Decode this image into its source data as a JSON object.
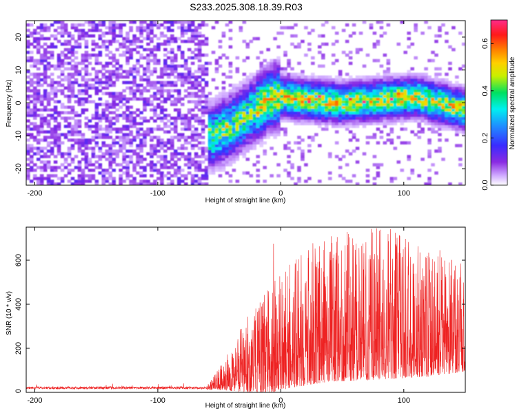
{
  "figure_title": "S233.2025.308.18.39.R03",
  "colorbar": {
    "label": "Normalized spectral amplitude",
    "ticks": [
      "0.0",
      "0.2",
      "0.4",
      "0.6"
    ],
    "tick_values": [
      0.0,
      0.2,
      0.4,
      0.6
    ],
    "range": [
      0.0,
      0.7
    ]
  },
  "chart_data": [
    {
      "type": "heatmap",
      "title": "S233.2025.308.18.39.R03",
      "xlabel": "Height of straight line (km)",
      "ylabel": "Frequency (Hz)",
      "xlim": [
        -207,
        150
      ],
      "ylim": [
        -25,
        25
      ],
      "xticks": [
        "-200",
        "-100",
        "0",
        "100"
      ],
      "xtick_values": [
        -200,
        -100,
        0,
        100
      ],
      "yticks": [
        "20",
        "10",
        "0",
        "-10",
        "-20"
      ],
      "ytick_values": [
        20,
        10,
        0,
        -10,
        -20
      ],
      "colormap": "rainbow (white-purple-blue-cyan-green-yellow-orange-red-magenta)",
      "value_range": [
        0.0,
        0.7
      ],
      "signal_track": {
        "description": "Narrow band near 0 Hz; noise-only left of about -58 km",
        "noise_end_km": -58,
        "center_freq_hz": [
          {
            "x": -55,
            "f": -10
          },
          {
            "x": -40,
            "f": -7
          },
          {
            "x": -25,
            "f": -3
          },
          {
            "x": -10,
            "f": 1
          },
          {
            "x": 0,
            "f": 2
          },
          {
            "x": 20,
            "f": 1
          },
          {
            "x": 50,
            "f": 0
          },
          {
            "x": 80,
            "f": 1
          },
          {
            "x": 110,
            "f": 2
          },
          {
            "x": 130,
            "f": 0
          },
          {
            "x": 150,
            "f": -2
          }
        ],
        "peak_amplitude": 0.65
      }
    },
    {
      "type": "line",
      "xlabel": "Height of straight line (km)",
      "ylabel": "SNR (10 * v/v)",
      "xlim": [
        -207,
        150
      ],
      "ylim": [
        0,
        750
      ],
      "xticks": [
        "-200",
        "-100",
        "0",
        "100"
      ],
      "xtick_values": [
        -200,
        -100,
        0,
        100
      ],
      "yticks": [
        "0",
        "200",
        "400",
        "600"
      ],
      "ytick_values": [
        0,
        200,
        400,
        600
      ],
      "color": "#ee2222",
      "series": [
        {
          "name": "SNR",
          "envelope": [
            {
              "x": -207,
              "base": 18,
              "amp": 12
            },
            {
              "x": -60,
              "base": 18,
              "amp": 12
            },
            {
              "x": -45,
              "base": 60,
              "amp": 90
            },
            {
              "x": -30,
              "base": 110,
              "amp": 200
            },
            {
              "x": -10,
              "base": 160,
              "amp": 300
            },
            {
              "x": 10,
              "base": 220,
              "amp": 360
            },
            {
              "x": 40,
              "base": 280,
              "amp": 420
            },
            {
              "x": 80,
              "base": 300,
              "amp": 440
            },
            {
              "x": 120,
              "base": 280,
              "amp": 380
            },
            {
              "x": 150,
              "base": 260,
              "amp": 300
            }
          ],
          "max_value": 745,
          "max_at_x": 78
        }
      ]
    }
  ]
}
